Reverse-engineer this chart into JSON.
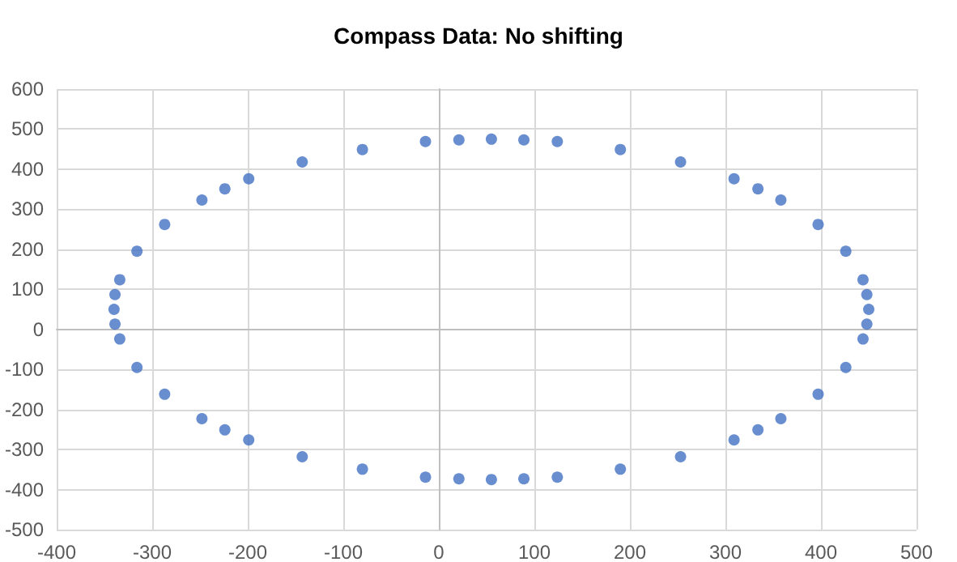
{
  "chart_data": {
    "type": "scatter",
    "title": "Compass Data: No shifting",
    "x": [
      450,
      448,
      444,
      426,
      397,
      358,
      334,
      309,
      253,
      190,
      124,
      89,
      55,
      21,
      -14,
      -80,
      -143,
      -199,
      -224,
      -248,
      -287,
      -316,
      -334,
      -339,
      -340,
      -339,
      -334,
      -316,
      -287,
      -248,
      -224,
      -199,
      -143,
      -80,
      -14,
      21,
      55,
      89,
      124,
      190,
      253,
      309,
      334,
      358,
      397,
      426,
      444,
      448
    ],
    "values": [
      50,
      87,
      124,
      195,
      262,
      323,
      351,
      376,
      418,
      449,
      469,
      473,
      475,
      473,
      469,
      449,
      418,
      376,
      351,
      323,
      262,
      195,
      124,
      87,
      50,
      13,
      -24,
      -95,
      -162,
      -223,
      -251,
      -276,
      -318,
      -349,
      -369,
      -373,
      -375,
      -373,
      -369,
      -349,
      -318,
      -276,
      -251,
      -223,
      -162,
      -95,
      -24,
      13
    ],
    "color": "#4472c4",
    "marker": "circle",
    "xlim": [
      -400,
      500
    ],
    "xticks": [
      -400,
      -300,
      -200,
      -100,
      0,
      100,
      200,
      300,
      400,
      500
    ],
    "ylim": [
      -500,
      600
    ],
    "yticks": [
      -500,
      -400,
      -300,
      -200,
      -100,
      0,
      100,
      200,
      300,
      400,
      500,
      600
    ],
    "grid": true
  }
}
